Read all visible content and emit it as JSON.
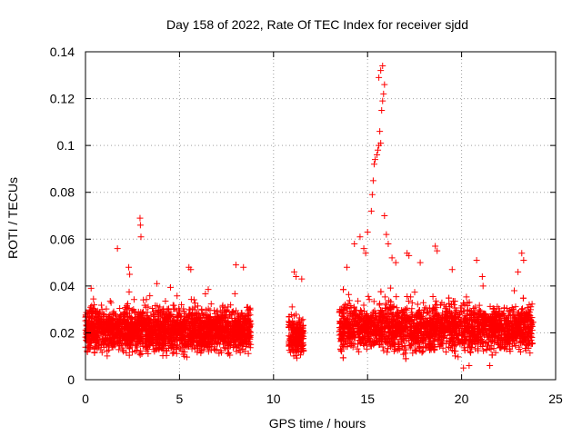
{
  "chart_data": {
    "type": "scatter",
    "title": "Day 158 of 2022, Rate Of TEC Index for receiver sjdd",
    "xlabel": "GPS time / hours",
    "ylabel": "ROTI / TECUs",
    "xlim": [
      0,
      25
    ],
    "ylim": [
      0,
      0.14
    ],
    "grid": true,
    "marker": "+",
    "color": "#ff0000",
    "x_ticks": [
      0,
      5,
      10,
      15,
      20,
      25
    ],
    "x_tick_labels": [
      "0",
      "5",
      "10",
      "15",
      "20",
      "25"
    ],
    "y_ticks": [
      0,
      0.02,
      0.04,
      0.06,
      0.08,
      0.1,
      0.12,
      0.14
    ],
    "y_tick_labels": [
      "0",
      "0.02",
      "0.04",
      "0.06",
      "0.08",
      "0.1",
      "0.12",
      "0.14"
    ],
    "series": [
      {
        "name": "sjdd",
        "segments": [
          {
            "t_start": 0.0,
            "t_end": 8.8,
            "base": 0.021,
            "spread": 0.013
          },
          {
            "t_start": 10.8,
            "t_end": 11.6,
            "base": 0.018,
            "spread": 0.012
          },
          {
            "t_start": 13.5,
            "t_end": 23.8,
            "base": 0.022,
            "spread": 0.014
          }
        ],
        "notable_points": [
          {
            "x": 0.3,
            "y": 0.039
          },
          {
            "x": 1.7,
            "y": 0.056
          },
          {
            "x": 2.3,
            "y": 0.048
          },
          {
            "x": 2.35,
            "y": 0.045
          },
          {
            "x": 2.9,
            "y": 0.069
          },
          {
            "x": 2.92,
            "y": 0.066
          },
          {
            "x": 2.95,
            "y": 0.061
          },
          {
            "x": 3.8,
            "y": 0.041
          },
          {
            "x": 5.5,
            "y": 0.048
          },
          {
            "x": 5.6,
            "y": 0.047
          },
          {
            "x": 8.0,
            "y": 0.049
          },
          {
            "x": 8.4,
            "y": 0.048
          },
          {
            "x": 11.1,
            "y": 0.046
          },
          {
            "x": 11.2,
            "y": 0.044
          },
          {
            "x": 11.5,
            "y": 0.043
          },
          {
            "x": 13.9,
            "y": 0.048
          },
          {
            "x": 14.3,
            "y": 0.058
          },
          {
            "x": 14.6,
            "y": 0.061
          },
          {
            "x": 14.8,
            "y": 0.056
          },
          {
            "x": 14.9,
            "y": 0.054
          },
          {
            "x": 15.0,
            "y": 0.063
          },
          {
            "x": 15.2,
            "y": 0.072
          },
          {
            "x": 15.25,
            "y": 0.079
          },
          {
            "x": 15.3,
            "y": 0.085
          },
          {
            "x": 15.35,
            "y": 0.092
          },
          {
            "x": 15.4,
            "y": 0.094
          },
          {
            "x": 15.5,
            "y": 0.096
          },
          {
            "x": 15.55,
            "y": 0.098
          },
          {
            "x": 15.6,
            "y": 0.1
          },
          {
            "x": 15.65,
            "y": 0.106
          },
          {
            "x": 15.7,
            "y": 0.101
          },
          {
            "x": 15.75,
            "y": 0.115
          },
          {
            "x": 15.8,
            "y": 0.119
          },
          {
            "x": 15.85,
            "y": 0.122
          },
          {
            "x": 15.9,
            "y": 0.126
          },
          {
            "x": 15.6,
            "y": 0.129
          },
          {
            "x": 15.7,
            "y": 0.132
          },
          {
            "x": 15.8,
            "y": 0.134
          },
          {
            "x": 15.9,
            "y": 0.07
          },
          {
            "x": 16.0,
            "y": 0.062
          },
          {
            "x": 16.1,
            "y": 0.058
          },
          {
            "x": 16.3,
            "y": 0.052
          },
          {
            "x": 16.5,
            "y": 0.05
          },
          {
            "x": 17.1,
            "y": 0.054
          },
          {
            "x": 17.2,
            "y": 0.053
          },
          {
            "x": 17.8,
            "y": 0.05
          },
          {
            "x": 18.6,
            "y": 0.057
          },
          {
            "x": 18.7,
            "y": 0.055
          },
          {
            "x": 20.8,
            "y": 0.051
          },
          {
            "x": 21.1,
            "y": 0.044
          },
          {
            "x": 23.2,
            "y": 0.054
          },
          {
            "x": 23.3,
            "y": 0.051
          },
          {
            "x": 23.0,
            "y": 0.046
          },
          {
            "x": 19.5,
            "y": 0.047
          },
          {
            "x": 20.1,
            "y": 0.005
          },
          {
            "x": 20.4,
            "y": 0.006
          },
          {
            "x": 21.5,
            "y": 0.006
          }
        ]
      }
    ]
  }
}
